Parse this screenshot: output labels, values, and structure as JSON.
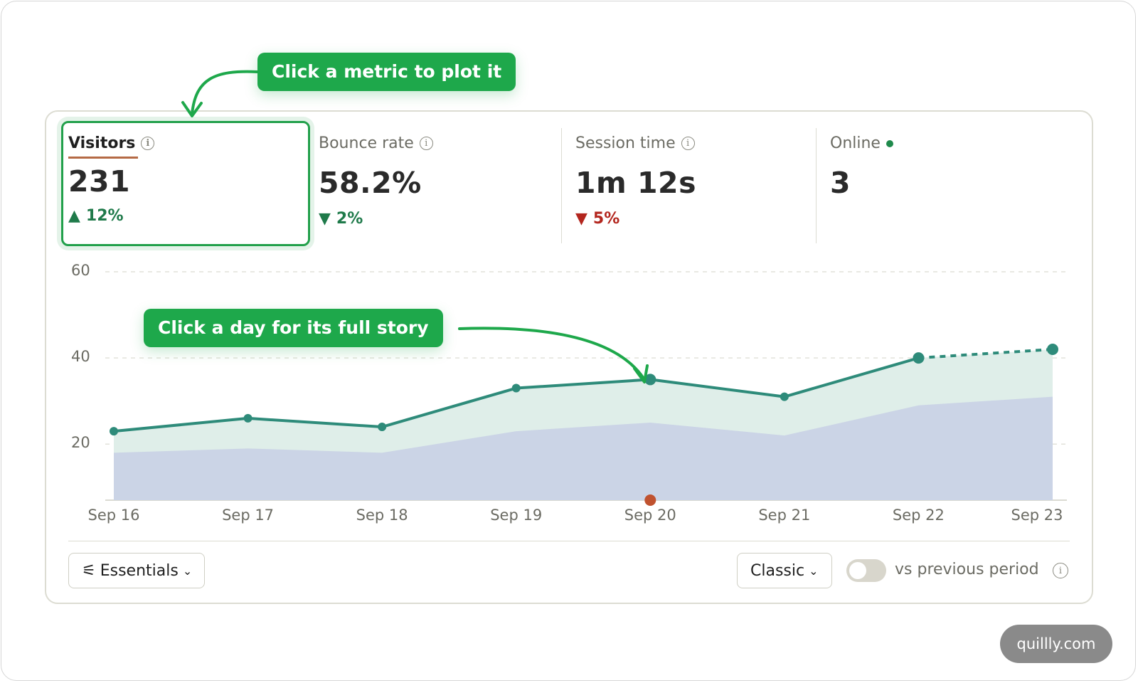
{
  "callouts": {
    "metric": "Click a metric to plot it",
    "day": "Click a day for its full story"
  },
  "metrics": [
    {
      "label": "Visitors",
      "value": "231",
      "change": "12%",
      "direction": "up",
      "tone": "green",
      "active": true
    },
    {
      "label": "Bounce rate",
      "value": "58.2%",
      "change": "2%",
      "direction": "down",
      "tone": "green"
    },
    {
      "label": "Session time",
      "value": "1m 12s",
      "change": "5%",
      "direction": "down",
      "tone": "red"
    },
    {
      "label": "Online",
      "value": "3",
      "status_color": "#1f8a4c"
    }
  ],
  "chart_data": {
    "type": "area",
    "categories": [
      "Sep 16",
      "Sep 17",
      "Sep 18",
      "Sep 19",
      "Sep 20",
      "Sep 21",
      "Sep 22",
      "Sep 23"
    ],
    "y_ticks": [
      "60",
      "40",
      "20"
    ],
    "ylim": [
      7,
      60
    ],
    "series": [
      {
        "values": [
          23,
          26,
          24,
          33,
          35,
          31,
          40,
          42
        ],
        "color": "#2e8b7a",
        "last_segment": "dashed"
      },
      {
        "values": [
          18,
          19,
          18,
          23,
          25,
          22,
          29,
          31
        ],
        "color": "#c9d2e6"
      }
    ],
    "marker_category": "Sep 20",
    "marker_color": "#c0522f",
    "grid": true
  },
  "controls": {
    "essentials": "Essentials",
    "classic": "Classic",
    "compare_label": "vs previous period",
    "compare_enabled": false
  },
  "watermark": "quillly.com"
}
